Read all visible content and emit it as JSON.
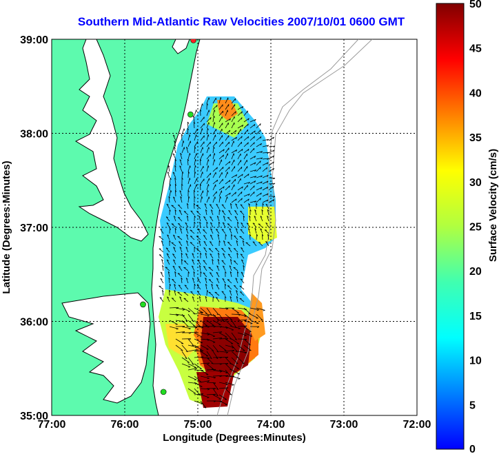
{
  "title": "Southern Mid-Atlantic Raw Velocities 2007/10/01 0600 GMT",
  "xlabel": "Longitude (Degrees:Minutes)",
  "ylabel": "Latitude (Degrees:Minutes)",
  "colorbar_label": "Surface Velocity (cm/s)",
  "x_ticks": [
    "77:00",
    "76:00",
    "75:00",
    "74:00",
    "73:00",
    "72:00"
  ],
  "y_ticks": [
    "39:00",
    "38:00",
    "37:00",
    "36:00",
    "35:00"
  ],
  "colorbar_ticks": [
    "50",
    "45",
    "40",
    "35",
    "30",
    "25",
    "20",
    "15",
    "10",
    "5",
    "0"
  ],
  "colors": {
    "land": "#5dfaae",
    "title": "#0000ff",
    "coast_line": "#000000",
    "bathymetry_line": "#999999",
    "station_marker": "#22dd22",
    "station_marker_alt": "#ff2222"
  },
  "chart_data": {
    "type": "heatmap",
    "title": "Southern Mid-Atlantic Raw Velocities 2007/10/01 0600 GMT",
    "xlabel": "Longitude (Degrees:Minutes)",
    "ylabel": "Latitude (Degrees:Minutes)",
    "xlim": [
      -77,
      -72
    ],
    "ylim": [
      35,
      39
    ],
    "colorbar": {
      "label": "Surface Velocity (cm/s)",
      "range": [
        0,
        50
      ],
      "colormap": "jet"
    },
    "grid": true,
    "stations": [
      {
        "lon": -75.06,
        "lat": 38.99,
        "status": "red"
      },
      {
        "lon": -75.1,
        "lat": 38.2,
        "status": "green"
      },
      {
        "lon": -75.75,
        "lat": 36.18,
        "status": "green"
      },
      {
        "lon": -75.47,
        "lat": 35.25,
        "status": "green"
      }
    ]
  }
}
